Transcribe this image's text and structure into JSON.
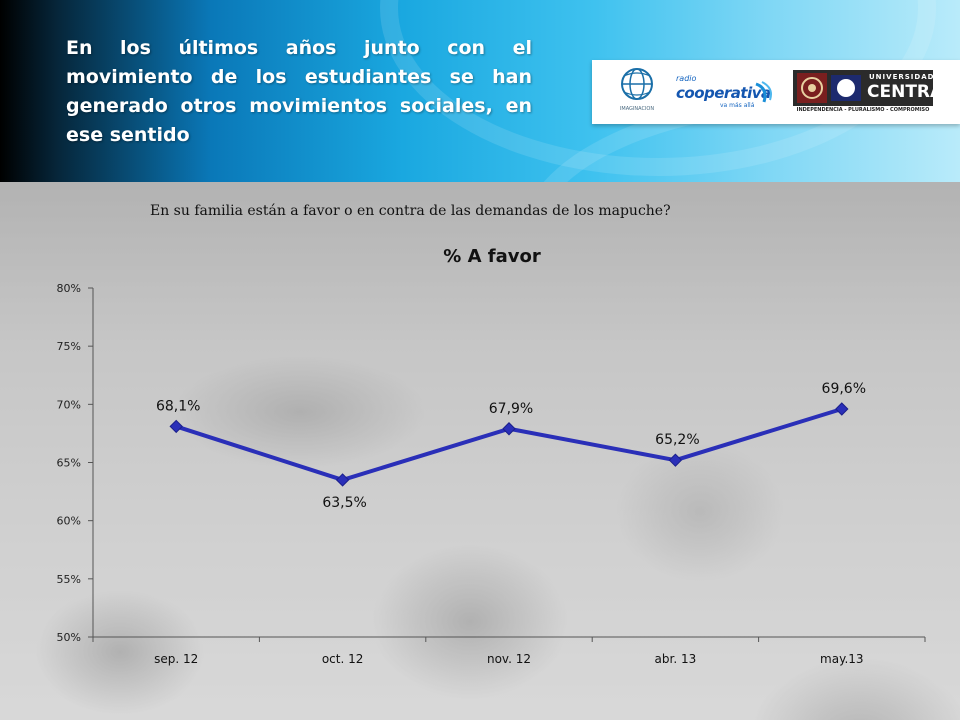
{
  "header": {
    "headline": "En los últimos años junto con el movimiento de los estudiantes se han generado otros movimientos sociales, en ese sentido",
    "logos": {
      "imaginacion": "IMAGINACION",
      "cooperativa_small": "radio",
      "cooperativa_main": "cooperativa",
      "cooperativa_sub": "va más allá",
      "central_univ": "UNIVERSIDAD",
      "central_name": "CENTRAL",
      "central_tag": "INDEPENDENCIA - PLURALISMO - COMPROMISO"
    }
  },
  "question": "En su familia están a favor o en contra de las demandas de los mapuche?",
  "chart_data": {
    "type": "line",
    "title": "% A favor",
    "categories": [
      "sep. 12",
      "oct. 12",
      "nov. 12",
      "abr. 13",
      "may.13"
    ],
    "series": [
      {
        "values": [
          68.1,
          63.5,
          67.9,
          65.2,
          69.6
        ],
        "data_labels": [
          "68,1%",
          "63,5%",
          "67,9%",
          "65,2%",
          "69,6%"
        ],
        "color": "#2a2fb8"
      }
    ],
    "y_ticks": [
      "50%",
      "55%",
      "60%",
      "65%",
      "70%",
      "75%",
      "80%"
    ],
    "ylim": [
      50,
      80
    ],
    "grid": false,
    "legend": "none"
  }
}
